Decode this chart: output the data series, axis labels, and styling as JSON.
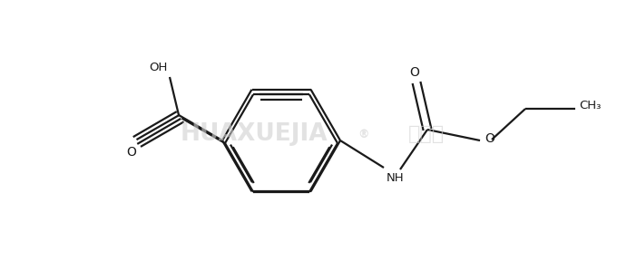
{
  "bg_color": "#ffffff",
  "line_color": "#1a1a1a",
  "line_width": 1.6,
  "figsize": [
    6.8,
    2.88
  ],
  "dpi": 100,
  "label_OH": "OH",
  "label_O_cooh": "O",
  "label_NH": "NH",
  "label_O_carbamate": "O",
  "label_O_ester": "O",
  "label_CH3": "CH₃"
}
